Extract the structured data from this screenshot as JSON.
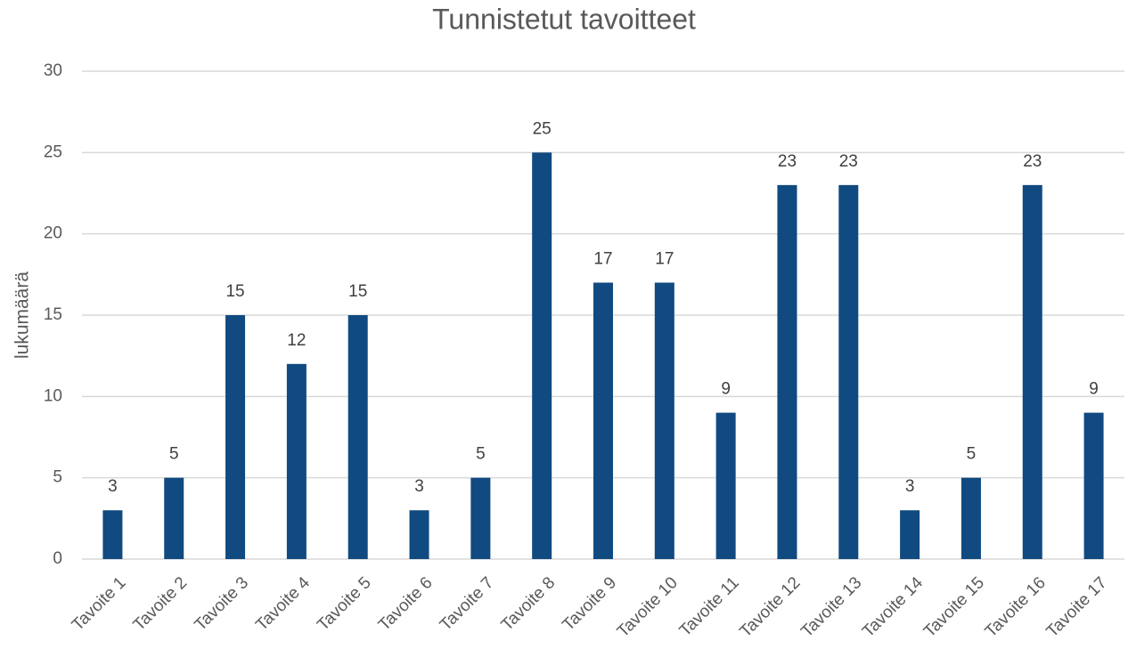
{
  "chart_data": {
    "type": "bar",
    "title": "Tunnistetut tavoitteet",
    "y_label": "lukumäärä",
    "categories": [
      "Tavoite 1",
      "Tavoite 2",
      "Tavoite 3",
      "Tavoite 4",
      "Tavoite 5",
      "Tavoite 6",
      "Tavoite 7",
      "Tavoite 8",
      "Tavoite 9",
      "Tavoite 10",
      "Tavoite 11",
      "Tavoite 12",
      "Tavoite 13",
      "Tavoite 14",
      "Tavoite 15",
      "Tavoite 16",
      "Tavoite 17"
    ],
    "values": [
      3,
      5,
      15,
      12,
      15,
      3,
      5,
      25,
      17,
      17,
      9,
      23,
      23,
      3,
      5,
      23,
      9
    ],
    "color": "#104a80",
    "ylim": [
      0,
      30
    ],
    "yticks": [
      0,
      5,
      10,
      15,
      20,
      25,
      30
    ],
    "grid": true
  }
}
